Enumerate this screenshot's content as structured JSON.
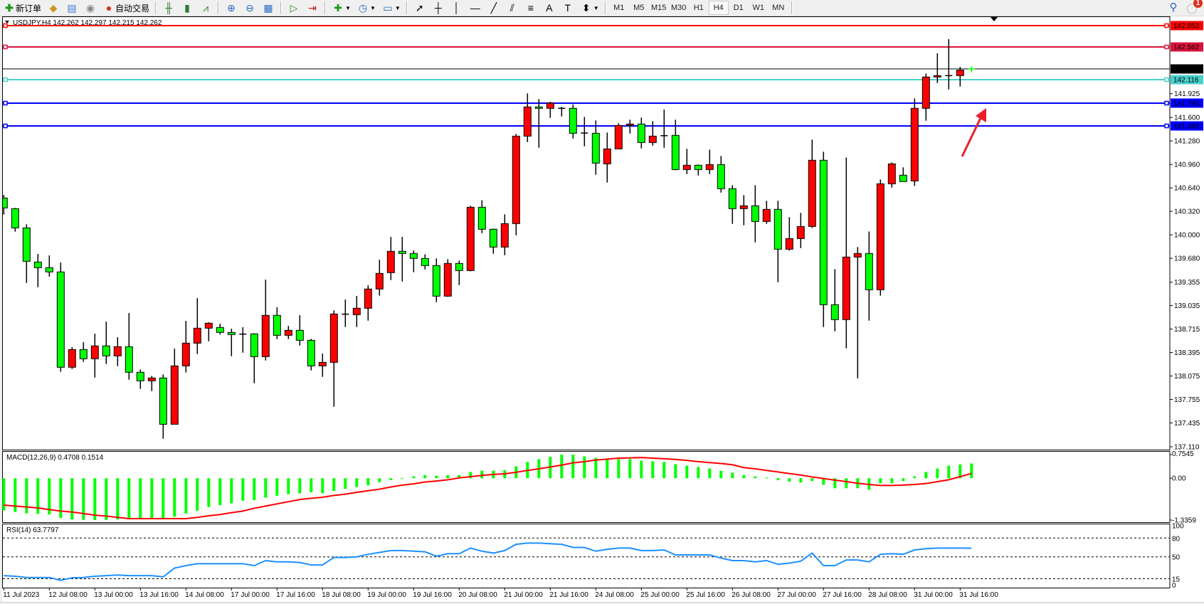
{
  "toolbar": {
    "new_order_label": "新订单",
    "auto_trading_label": "自动交易",
    "tools": [
      {
        "name": "gold-icon"
      },
      {
        "name": "terminal-icon"
      },
      {
        "name": "signals-icon"
      }
    ],
    "chart_type_tools": [
      "bar-chart-icon",
      "candlestick-chart-icon",
      "line-chart-icon"
    ],
    "view_tools": [
      "zoom-in-icon",
      "zoom-out-icon",
      "tile-windows-icon"
    ],
    "scroll_tools": [
      "auto-scroll-icon",
      "chart-shift-icon"
    ],
    "drawing_tools": [
      {
        "name": "cursor-icon",
        "glyph": "➚"
      },
      {
        "name": "crosshair-icon",
        "glyph": "┼"
      },
      {
        "name": "vertical-line-icon",
        "glyph": "│"
      },
      {
        "name": "horizontal-line-icon",
        "glyph": "—"
      },
      {
        "name": "trendline-icon",
        "glyph": "╱"
      },
      {
        "name": "fibonacci-channel-icon",
        "glyph": "⫽"
      },
      {
        "name": "fibonacci-retracement-icon",
        "glyph": "≡"
      },
      {
        "name": "text-icon",
        "glyph": "A"
      },
      {
        "name": "text-label-icon",
        "glyph": "T"
      }
    ],
    "timeframes": [
      "M1",
      "M5",
      "M15",
      "M30",
      "H1",
      "H4",
      "D1",
      "W1",
      "MN"
    ],
    "active_timeframe": "H4",
    "notification_count": "1"
  },
  "chart": {
    "title": "USDJPY,H4  142.262 142.297 142.215 142.262",
    "symbol": "USDJPY",
    "timeframe": "H4",
    "bull_color": "#ff0000",
    "bear_color": "#00ff00",
    "price_ticks": [
      "141.925",
      "141.600",
      "141.280",
      "140.960",
      "140.640",
      "140.320",
      "140.000",
      "139.680",
      "139.355",
      "139.035",
      "138.715",
      "138.395",
      "138.075",
      "137.755",
      "137.435",
      "137.110"
    ],
    "levels": [
      {
        "price": "142.853",
        "color": "#ff0000"
      },
      {
        "price": "142.562",
        "color": "#dc143c"
      },
      {
        "price": "142.116",
        "color": "#48d1cc"
      },
      {
        "price": "141.796",
        "color": "#0000ff"
      },
      {
        "price": "141.485",
        "color": "#0000ff"
      }
    ],
    "bid": {
      "price": "142.262",
      "color": "#000000"
    },
    "annotation": {
      "type": "arrow",
      "color": "#e8202a"
    },
    "time_labels": [
      "11 Jul 2023",
      "12 Jul 08:00",
      "13 Jul 00:00",
      "13 Jul 16:00",
      "14 Jul 08:00",
      "17 Jul 00:00",
      "17 Jul 16:00",
      "18 Jul 08:00",
      "19 Jul 00:00",
      "19 Jul 16:00",
      "20 Jul 08:00",
      "21 Jul 00:00",
      "21 Jul 16:00",
      "24 Jul 08:00",
      "25 Jul 00:00",
      "25 Jul 16:00",
      "26 Jul 08:00",
      "27 Jul 00:00",
      "27 Jul 16:00",
      "28 Jul 08:00",
      "31 Jul 00:00",
      "31 Jul 16:00"
    ],
    "macd": {
      "label": "MACD(12,26,9) 0.4708 0.1514",
      "axis_labels": [
        "0.7545",
        "0.00",
        "-1.3359"
      ],
      "histogram_color": "#00ff00",
      "signal_color": "#ff0000"
    },
    "rsi": {
      "label": "RSI(14) 63.7797",
      "axis_labels": [
        "100",
        "80",
        "50",
        "15",
        "0"
      ],
      "levels": [
        80,
        50,
        15
      ],
      "color": "#1e90ff"
    }
  },
  "chart_data": {
    "type": "candlestick",
    "title": "USDJPY,H4",
    "ohlc_order": [
      "open",
      "high",
      "low",
      "close"
    ],
    "ylim": [
      137.11,
      142.853
    ],
    "candles": [
      [
        140.502,
        140.544,
        140.275,
        140.367
      ],
      [
        140.357,
        140.367,
        140.043,
        140.095
      ],
      [
        140.095,
        140.143,
        139.344,
        139.639
      ],
      [
        139.629,
        139.739,
        139.286,
        139.552
      ],
      [
        139.552,
        139.72,
        139.431,
        139.494
      ],
      [
        139.494,
        139.623,
        138.132,
        138.194
      ],
      [
        138.194,
        138.468,
        138.17,
        138.436
      ],
      [
        138.436,
        138.536,
        138.267,
        138.31
      ],
      [
        138.31,
        138.652,
        138.054,
        138.485
      ],
      [
        138.485,
        138.817,
        138.238,
        138.349
      ],
      [
        138.349,
        138.604,
        138.209,
        138.475
      ],
      [
        138.475,
        138.934,
        138.025,
        138.126
      ],
      [
        138.126,
        138.164,
        137.899,
        138.009
      ],
      [
        138.009,
        138.077,
        137.87,
        138.048
      ],
      [
        138.048,
        138.097,
        137.22,
        137.417
      ],
      [
        137.417,
        138.449,
        137.417,
        138.213
      ],
      [
        138.213,
        138.827,
        138.122,
        138.523
      ],
      [
        138.523,
        139.137,
        138.374,
        138.727
      ],
      [
        138.727,
        138.808,
        138.549,
        138.795
      ],
      [
        138.737,
        138.788,
        138.64,
        138.669
      ],
      [
        138.669,
        138.72,
        138.345,
        138.64
      ],
      [
        138.646,
        138.74,
        138.393,
        138.646
      ],
      [
        138.65,
        138.659,
        137.976,
        138.339
      ],
      [
        138.339,
        139.39,
        138.287,
        138.902
      ],
      [
        138.902,
        139.011,
        138.578,
        138.63
      ],
      [
        138.63,
        138.759,
        138.578,
        138.698
      ],
      [
        138.698,
        138.905,
        138.49,
        138.562
      ],
      [
        138.562,
        138.582,
        138.151,
        138.213
      ],
      [
        138.213,
        138.381,
        138.064,
        138.261
      ],
      [
        138.261,
        138.97,
        137.656,
        138.921
      ],
      [
        138.918,
        139.118,
        138.743,
        138.918
      ],
      [
        138.911,
        139.167,
        138.743,
        138.999
      ],
      [
        138.999,
        139.312,
        138.83,
        139.261
      ],
      [
        139.261,
        139.661,
        139.17,
        139.474
      ],
      [
        139.484,
        139.972,
        139.383,
        139.775
      ],
      [
        139.775,
        139.972,
        139.364,
        139.746
      ],
      [
        139.746,
        139.787,
        139.49,
        139.678
      ],
      [
        139.678,
        139.736,
        139.528,
        139.581
      ],
      [
        139.581,
        139.678,
        139.082,
        139.164
      ],
      [
        139.164,
        139.668,
        139.154,
        139.61
      ],
      [
        139.61,
        139.649,
        139.315,
        139.513
      ],
      [
        139.513,
        140.396,
        139.503,
        140.376
      ],
      [
        140.376,
        140.473,
        140.023,
        140.076
      ],
      [
        140.076,
        140.085,
        139.742,
        139.833
      ],
      [
        139.833,
        140.279,
        139.722,
        140.153
      ],
      [
        140.153,
        141.376,
        139.994,
        141.346
      ],
      [
        141.346,
        141.928,
        141.265,
        141.744
      ],
      [
        141.744,
        141.851,
        141.187,
        141.725
      ],
      [
        141.725,
        141.815,
        141.595,
        141.796
      ],
      [
        141.725,
        141.747,
        141.614,
        141.725
      ],
      [
        141.725,
        141.779,
        141.313,
        141.385
      ],
      [
        141.388,
        141.608,
        141.207,
        141.388
      ],
      [
        141.385,
        141.56,
        140.819,
        140.978
      ],
      [
        140.968,
        141.395,
        140.712,
        141.172
      ],
      [
        141.172,
        141.521,
        141.172,
        141.492
      ],
      [
        141.492,
        141.57,
        141.381,
        141.511
      ],
      [
        141.511,
        141.599,
        141.178,
        141.259
      ],
      [
        141.259,
        141.55,
        141.216,
        141.346
      ],
      [
        141.352,
        141.708,
        141.187,
        141.352
      ],
      [
        141.356,
        141.57,
        140.881,
        140.89
      ],
      [
        140.89,
        141.172,
        140.828,
        140.949
      ],
      [
        140.949,
        140.958,
        140.809,
        140.89
      ],
      [
        140.89,
        141.162,
        140.828,
        140.958
      ],
      [
        140.958,
        141.075,
        140.576,
        140.629
      ],
      [
        140.629,
        140.677,
        140.149,
        140.357
      ],
      [
        140.357,
        140.541,
        140.13,
        140.396
      ],
      [
        140.396,
        140.677,
        139.897,
        140.182
      ],
      [
        140.182,
        140.464,
        140.149,
        140.347
      ],
      [
        140.347,
        140.464,
        139.354,
        139.804
      ],
      [
        139.804,
        140.241,
        139.785,
        139.949
      ],
      [
        139.949,
        140.299,
        139.819,
        140.114
      ],
      [
        140.114,
        141.298,
        140.095,
        141.017
      ],
      [
        141.017,
        141.133,
        138.743,
        139.047
      ],
      [
        139.047,
        139.532,
        138.684,
        138.844
      ],
      [
        138.844,
        141.055,
        138.452,
        139.697
      ],
      [
        139.697,
        139.833,
        138.044,
        139.746
      ],
      [
        139.746,
        140.046,
        138.83,
        139.251
      ],
      [
        139.251,
        140.755,
        139.17,
        140.696
      ],
      [
        140.696,
        140.987,
        140.644,
        140.968
      ],
      [
        140.813,
        140.92,
        140.726,
        140.726
      ],
      [
        140.735,
        141.861,
        140.667,
        141.725
      ],
      [
        141.725,
        142.2,
        141.556,
        142.152
      ],
      [
        142.152,
        142.475,
        142.07,
        142.171
      ],
      [
        142.171,
        142.669,
        141.983,
        142.171
      ],
      [
        142.171,
        142.29,
        142.022,
        142.245
      ],
      [
        142.262,
        142.297,
        142.215,
        142.262
      ]
    ],
    "macd_histogram": [
      -1.03,
      -1.08,
      -1.12,
      -1.14,
      -1.16,
      -1.27,
      -1.32,
      -1.33,
      -1.336,
      -1.33,
      -1.32,
      -1.29,
      -1.29,
      -1.29,
      -1.28,
      -1.23,
      -1.13,
      -1.04,
      -0.92,
      -0.86,
      -0.8,
      -0.72,
      -0.7,
      -0.62,
      -0.56,
      -0.51,
      -0.48,
      -0.45,
      -0.48,
      -0.41,
      -0.34,
      -0.28,
      -0.23,
      -0.13,
      -0.06,
      0.01,
      0.06,
      0.1,
      0.08,
      0.1,
      0.1,
      0.2,
      0.24,
      0.24,
      0.26,
      0.38,
      0.52,
      0.61,
      0.68,
      0.7545,
      0.75,
      0.7,
      0.65,
      0.61,
      0.61,
      0.61,
      0.56,
      0.54,
      0.52,
      0.45,
      0.4,
      0.36,
      0.31,
      0.24,
      0.18,
      0.1,
      0.06,
      0.02,
      -0.06,
      -0.11,
      -0.14,
      -0.09,
      -0.21,
      -0.32,
      -0.32,
      -0.32,
      -0.37,
      -0.16,
      -0.16,
      -0.09,
      0.06,
      0.2,
      0.31,
      0.4,
      0.44,
      0.4708
    ],
    "macd_signal": [
      -0.86,
      -0.89,
      -0.92,
      -0.95,
      -1.0,
      -1.05,
      -1.08,
      -1.13,
      -1.18,
      -1.21,
      -1.25,
      -1.29,
      -1.29,
      -1.29,
      -1.29,
      -1.29,
      -1.29,
      -1.25,
      -1.2,
      -1.16,
      -1.1,
      -1.05,
      -0.96,
      -0.89,
      -0.82,
      -0.75,
      -0.68,
      -0.64,
      -0.61,
      -0.55,
      -0.51,
      -0.45,
      -0.4,
      -0.35,
      -0.28,
      -0.22,
      -0.18,
      -0.12,
      -0.09,
      -0.05,
      0.01,
      0.05,
      0.09,
      0.12,
      0.14,
      0.19,
      0.25,
      0.3,
      0.36,
      0.42,
      0.49,
      0.53,
      0.58,
      0.61,
      0.64,
      0.65,
      0.66,
      0.64,
      0.62,
      0.6,
      0.57,
      0.53,
      0.5,
      0.47,
      0.43,
      0.34,
      0.3,
      0.25,
      0.2,
      0.15,
      0.1,
      0.04,
      -0.01,
      -0.06,
      -0.11,
      -0.16,
      -0.2,
      -0.23,
      -0.23,
      -0.22,
      -0.2,
      -0.17,
      -0.11,
      -0.05,
      0.05,
      0.1514
    ],
    "macd_ylim": [
      -1.3359,
      0.7545
    ],
    "rsi_values": [
      20,
      19,
      17,
      17,
      17,
      12.5,
      16.5,
      17,
      19,
      20,
      21,
      20,
      20,
      20,
      18,
      32,
      36,
      39,
      39,
      39,
      39,
      39,
      36,
      44,
      42,
      42,
      41,
      37,
      37,
      49,
      49,
      50,
      54,
      57,
      60,
      60,
      59,
      58,
      51,
      55,
      55,
      64,
      59,
      56,
      60,
      70,
      72,
      72,
      71,
      70,
      65,
      65,
      59,
      62,
      64,
      64,
      60,
      60,
      61,
      53,
      53,
      53,
      53,
      48,
      44,
      44,
      42,
      44,
      38,
      40,
      43,
      56,
      36,
      36,
      45,
      45,
      42,
      54,
      55,
      54,
      61,
      63,
      64,
      64,
      64,
      63.7797
    ],
    "rsi_ylim": [
      0,
      100
    ]
  }
}
